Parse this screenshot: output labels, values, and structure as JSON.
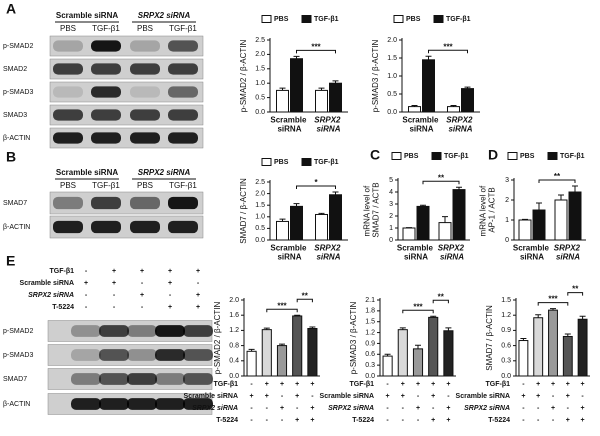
{
  "panel_letters": [
    "A",
    "B",
    "C",
    "D",
    "E"
  ],
  "blots": {
    "A": {
      "groups": [
        "Scramble siRNA",
        "SRPX2 siRNA"
      ],
      "lanes": [
        "PBS",
        "TGF-β1",
        "PBS",
        "TGF-β1"
      ],
      "rows": [
        "p-SMAD2",
        "SMAD2",
        "p-SMAD3",
        "SMAD3",
        "β-ACTIN"
      ]
    },
    "B": {
      "groups": [
        "Scramble siRNA",
        "SRPX2 siRNA"
      ],
      "lanes": [
        "PBS",
        "TGF-β1",
        "PBS",
        "TGF-β1"
      ],
      "rows": [
        "SMAD7",
        "β-ACTIN"
      ]
    },
    "E": {
      "rows": [
        "p-SMAD2",
        "p-SMAD3",
        "SMAD7",
        "β-ACTIN"
      ]
    }
  },
  "conditions": [
    {
      "label": "TGF-β1",
      "signs": [
        "-",
        "+",
        "+",
        "+",
        "+"
      ]
    },
    {
      "label": "Scramble siRNA",
      "signs": [
        "+",
        "+",
        "-",
        "+",
        "-"
      ]
    },
    {
      "label": "SRPX2 siRNA",
      "signs": [
        "-",
        "-",
        "+",
        "-",
        "+"
      ]
    },
    {
      "label": "T-5224",
      "signs": [
        "-",
        "-",
        "-",
        "+",
        "+"
      ]
    }
  ],
  "chart_data": [
    {
      "type": "bar",
      "ylabel": "p-SMAD2 / β-ACTIN",
      "categories": [
        "Scramble siRNA",
        "SRPX2 siRNA"
      ],
      "series": [
        {
          "name": "PBS",
          "color": "#ffffff",
          "values": [
            0.75,
            0.75
          ],
          "errors": [
            0.08,
            0.08
          ]
        },
        {
          "name": "TGF-β1",
          "color": "#111111",
          "values": [
            1.85,
            1.0
          ],
          "errors": [
            0.08,
            0.08
          ]
        }
      ],
      "ylim": [
        0,
        2.5
      ],
      "yticks": [
        {
          "value": 0,
          "label": "0.0"
        },
        0.5,
        {
          "value": 1,
          "label": "1.0"
        },
        1.5,
        {
          "value": 2,
          "label": "2.0"
        },
        2.5
      ],
      "annotations": [
        "***"
      ]
    },
    {
      "type": "bar",
      "ylabel": "p-SMAD3 / β-ACTIN",
      "categories": [
        "Scramble siRNA",
        "SRPX2 siRNA"
      ],
      "series": [
        {
          "name": "PBS",
          "color": "#ffffff",
          "values": [
            0.15,
            0.15
          ],
          "errors": [
            0.03,
            0.03
          ]
        },
        {
          "name": "TGF-β1",
          "color": "#111111",
          "values": [
            1.45,
            0.65
          ],
          "errors": [
            0.1,
            0.04
          ]
        }
      ],
      "ylim": [
        0,
        2
      ],
      "yticks": [
        {
          "value": 0,
          "label": "0.0"
        },
        0.5,
        {
          "value": 1,
          "label": "1.0"
        },
        1.5,
        {
          "value": 2,
          "label": "2.0"
        }
      ],
      "annotations": [
        "***"
      ]
    },
    {
      "type": "bar",
      "ylabel": "SMAD7 / β-ACTIN",
      "categories": [
        "Scramble siRNA",
        "SRPX2 siRNA"
      ],
      "series": [
        {
          "name": "PBS",
          "color": "#ffffff",
          "values": [
            0.8,
            1.1
          ],
          "errors": [
            0.1,
            0.05
          ]
        },
        {
          "name": "TGF-β1",
          "color": "#111111",
          "values": [
            1.45,
            1.95
          ],
          "errors": [
            0.12,
            0.12
          ]
        }
      ],
      "ylim": [
        0,
        2.5
      ],
      "yticks": [
        {
          "value": 0,
          "label": "0.0"
        },
        0.5,
        {
          "value": 1,
          "label": "1.0"
        },
        1.5,
        {
          "value": 2,
          "label": "2.0"
        },
        2.5
      ],
      "annotations": [
        "*"
      ]
    },
    {
      "type": "bar",
      "ylabel": "mRNA level of SMAD7 / ACTB",
      "categories": [
        "Scramble siRNA",
        "SRPX2 siRNA"
      ],
      "series": [
        {
          "name": "PBS",
          "color": "#ffffff",
          "values": [
            1.0,
            1.45
          ],
          "errors": [
            0.03,
            0.5
          ]
        },
        {
          "name": "TGF-β1",
          "color": "#111111",
          "values": [
            2.8,
            4.2
          ],
          "errors": [
            0.1,
            0.2
          ]
        }
      ],
      "ylim": [
        0,
        5
      ],
      "yticks": [
        0,
        1,
        2,
        3,
        4,
        5
      ],
      "annotations": [
        "**"
      ]
    },
    {
      "type": "bar",
      "ylabel": "mRNA level of AP-1 / ACTB",
      "categories": [
        "Scramble siRNA",
        "SRPX2 siRNA"
      ],
      "series": [
        {
          "name": "PBS",
          "color": "#ffffff",
          "values": [
            1.0,
            2.0
          ],
          "errors": [
            0.03,
            0.25
          ]
        },
        {
          "name": "TGF-β1",
          "color": "#111111",
          "values": [
            1.5,
            2.4
          ],
          "errors": [
            0.35,
            0.3
          ]
        }
      ],
      "ylim": [
        0,
        3
      ],
      "yticks": [
        0,
        1,
        2,
        3
      ],
      "annotations": [
        "**"
      ]
    },
    {
      "type": "bar",
      "ylabel": "p-SMAD2 / β-ACTIN",
      "categories": [
        null,
        null,
        null,
        null,
        null
      ],
      "values": [
        0.65,
        1.22,
        0.8,
        1.58,
        1.25
      ],
      "errors": [
        0.05,
        0.04,
        0.04,
        0.02,
        0.04
      ],
      "colors": [
        "#ffffff",
        "#d9d9d9",
        "#999999",
        "#555555",
        "#222222"
      ],
      "ylim": [
        0,
        2
      ],
      "yticks": [
        {
          "value": 0,
          "label": "0.0"
        },
        0.4,
        0.8,
        1.2,
        1.6,
        {
          "value": 2,
          "label": "2.0"
        }
      ],
      "annotations": [
        "**",
        "***"
      ]
    },
    {
      "type": "bar",
      "ylabel": "p-SMAD3 / β-ACTIN",
      "categories": [
        null,
        null,
        null,
        null,
        null
      ],
      "values": [
        0.55,
        1.28,
        0.75,
        1.62,
        1.25
      ],
      "errors": [
        0.05,
        0.05,
        0.1,
        0.03,
        0.08
      ],
      "colors": [
        "#ffffff",
        "#d9d9d9",
        "#999999",
        "#555555",
        "#222222"
      ],
      "ylim": [
        0,
        2.1
      ],
      "yticks": [
        {
          "value": 0,
          "label": "0.0"
        },
        0.3,
        0.6,
        0.9,
        1.2,
        1.5,
        1.8,
        2.1
      ],
      "annotations": [
        "**",
        "***"
      ]
    },
    {
      "type": "bar",
      "ylabel": "SMAD7 / β-ACTIN",
      "categories": [
        null,
        null,
        null,
        null,
        null
      ],
      "values": [
        0.7,
        1.15,
        1.3,
        0.78,
        1.12
      ],
      "errors": [
        0.04,
        0.06,
        0.03,
        0.05,
        0.06
      ],
      "colors": [
        "#ffffff",
        "#d9d9d9",
        "#999999",
        "#555555",
        "#222222"
      ],
      "ylim": [
        0,
        1.5
      ],
      "yticks": [
        {
          "value": 0,
          "label": "0.0"
        },
        0.3,
        0.6,
        0.9,
        1.2,
        1.5
      ],
      "annotations": [
        "**",
        "***"
      ]
    }
  ]
}
